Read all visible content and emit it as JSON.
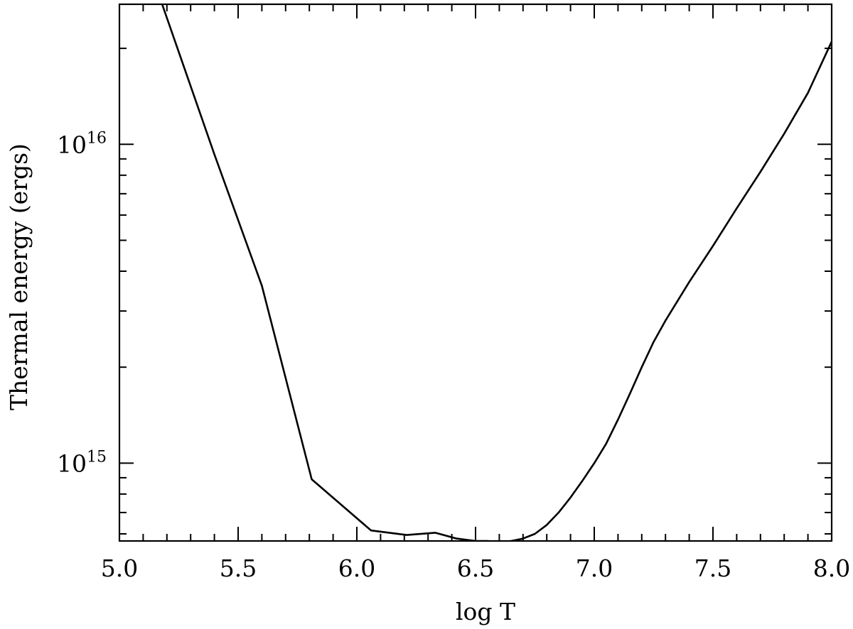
{
  "chart_data": {
    "type": "line",
    "title": "",
    "xlabel": "log T",
    "ylabel": "Thermal energy (ergs)",
    "xlim": [
      5.0,
      8.0
    ],
    "ylim": [
      570000000000000.0,
      2.75e+16
    ],
    "yscale": "log",
    "grid": false,
    "legend": "none",
    "x_ticks": [
      {
        "value": 5.0,
        "label": "5.0"
      },
      {
        "value": 5.5,
        "label": "5.5"
      },
      {
        "value": 6.0,
        "label": "6.0"
      },
      {
        "value": 6.5,
        "label": "6.5"
      },
      {
        "value": 7.0,
        "label": "7.0"
      },
      {
        "value": 7.5,
        "label": "7.5"
      },
      {
        "value": 8.0,
        "label": "8.0"
      }
    ],
    "x_minor_step": 0.1,
    "y_ticks": [
      {
        "value": 1000000000000000.0,
        "base": "10",
        "exp": "15"
      },
      {
        "value": 1e+16,
        "base": "10",
        "exp": "16"
      }
    ],
    "series": [
      {
        "color": "#000000",
        "x": [
          5.18,
          5.4,
          5.6,
          5.81,
          6.06,
          6.21,
          6.33,
          6.42,
          6.5,
          6.55,
          6.6,
          6.65,
          6.7,
          6.75,
          6.8,
          6.85,
          6.9,
          6.95,
          7.0,
          7.05,
          7.1,
          7.15,
          7.2,
          7.25,
          7.3,
          7.4,
          7.5,
          7.6,
          7.7,
          7.8,
          7.9,
          8.0
        ],
        "y": [
          2.75e+16,
          9300000000000000.0,
          3600000000000000.0,
          890000000000000.0,
          615000000000000.0,
          595000000000000.0,
          605000000000000.0,
          580000000000000.0,
          570000000000000.0,
          570000000000000.0,
          565000000000000.0,
          570000000000000.0,
          580000000000000.0,
          600000000000000.0,
          640000000000000.0,
          700000000000000.0,
          780000000000000.0,
          880000000000000.0,
          1000000000000000.0,
          1150000000000000.0,
          1370000000000000.0,
          1650000000000000.0,
          2000000000000000.0,
          2400000000000000.0,
          2800000000000000.0,
          3700000000000000.0,
          4800000000000000.0,
          6300000000000000.0,
          8200000000000000.0,
          1.08e+16,
          1.45e+16,
          2.1e+16
        ]
      }
    ]
  }
}
